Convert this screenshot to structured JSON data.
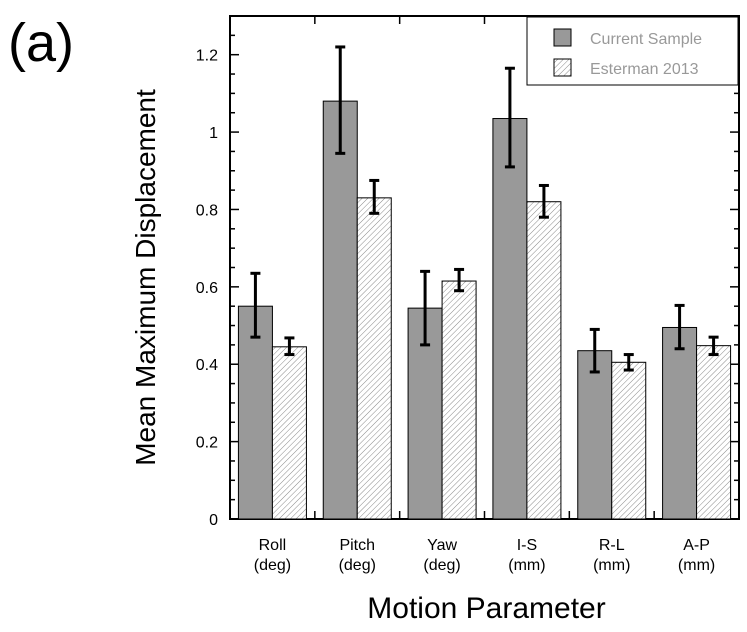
{
  "panel_label": "(a)",
  "chart_data": {
    "type": "bar",
    "title": "",
    "xlabel": "Motion Parameter",
    "ylabel": "Mean Maximum Displacement",
    "ylim": [
      0,
      1.3
    ],
    "yticks": [
      "0",
      "0.2",
      "0.4",
      "0.6",
      "0.8",
      "1",
      "1.2"
    ],
    "ytick_values": [
      0,
      0.2,
      0.4,
      0.6,
      0.8,
      1.0,
      1.2
    ],
    "categories": [
      [
        "Roll",
        "(deg)"
      ],
      [
        "Pitch",
        "(deg)"
      ],
      [
        "Yaw",
        "(deg)"
      ],
      [
        "I-S",
        "(mm)"
      ],
      [
        "R-L",
        "(mm)"
      ],
      [
        "A-P",
        "(mm)"
      ]
    ],
    "series": [
      {
        "name": "Current Sample",
        "values": [
          0.55,
          1.08,
          0.545,
          1.035,
          0.435,
          0.495
        ],
        "err_low": [
          0.47,
          0.945,
          0.45,
          0.91,
          0.38,
          0.44
        ],
        "err_high": [
          0.635,
          1.22,
          0.64,
          1.165,
          0.49,
          0.552
        ],
        "color": "#999999",
        "pattern": "solid"
      },
      {
        "name": "Esterman 2013",
        "values": [
          0.445,
          0.83,
          0.615,
          0.82,
          0.405,
          0.448
        ],
        "err_low": [
          0.425,
          0.79,
          0.59,
          0.78,
          0.385,
          0.425
        ],
        "err_high": [
          0.468,
          0.875,
          0.645,
          0.862,
          0.425,
          0.47
        ],
        "color": "#ffffff",
        "pattern": "hatch"
      }
    ],
    "legend_position": "top-right",
    "grid": false
  }
}
